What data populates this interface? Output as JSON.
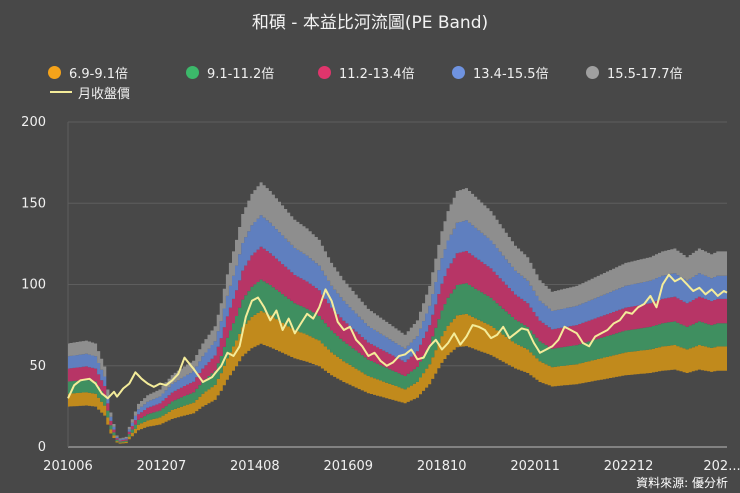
{
  "title": "和碩 - 本益比河流圖(PE Band)",
  "source": "資料來源: 優分析",
  "chart_data": {
    "type": "area",
    "title": "和碩 - 本益比河流圖(PE Band)",
    "ylim": [
      0,
      200
    ],
    "yticks": [
      "0",
      "50",
      "100",
      "150",
      "200"
    ],
    "xticks": [
      "201006",
      "201207",
      "201408",
      "201609",
      "201810",
      "202011",
      "202212",
      "202..."
    ],
    "x_start": "201006",
    "x_end": "202305",
    "legend": [
      {
        "label": "6.9-9.1倍",
        "color": "#f5a31a",
        "kind": "dot"
      },
      {
        "label": "9.1-11.2倍",
        "color": "#3cb86a",
        "kind": "dot"
      },
      {
        "label": "11.2-13.4倍",
        "color": "#e0356c",
        "kind": "dot"
      },
      {
        "label": "13.4-15.5倍",
        "color": "#6f93e0",
        "kind": "dot"
      },
      {
        "label": "15.5-17.7倍",
        "color": "#a0a0a0",
        "kind": "dot"
      },
      {
        "label": "月收盤價",
        "color": "#f4ec9a",
        "kind": "line"
      }
    ],
    "band_colors": [
      "#c18a1c",
      "#3f8f60",
      "#b73566",
      "#5f7fbf",
      "#8e8e8e"
    ],
    "band_multipliers": [
      6.9,
      9.1,
      11.2,
      13.4,
      15.5,
      17.7
    ],
    "eps_anchor_months": [
      0,
      6,
      9,
      12,
      14,
      16,
      17,
      19,
      20,
      23,
      26,
      30,
      34,
      38,
      41,
      44,
      48,
      50,
      52,
      55,
      57,
      60,
      63,
      66,
      70,
      74,
      78,
      82,
      86,
      90,
      94,
      98,
      102,
      106,
      110,
      114,
      118,
      122,
      124,
      127,
      130,
      134,
      138,
      142,
      146,
      150,
      154,
      158,
      162,
      166,
      170,
      174,
      178,
      182,
      186,
      190,
      194,
      198,
      202,
      206,
      210,
      212,
      215
    ],
    "eps_anchor_values": [
      3.6,
      3.7,
      3.6,
      2.8,
      1.2,
      0.4,
      0.3,
      0.35,
      0.7,
      1.5,
      1.8,
      2.0,
      2.5,
      2.8,
      3.0,
      3.6,
      4.2,
      5.0,
      6.0,
      7.2,
      8.1,
      8.8,
      9.2,
      8.9,
      8.4,
      7.9,
      7.6,
      7.2,
      6.4,
      5.8,
      5.3,
      4.8,
      4.5,
      4.2,
      3.9,
      4.4,
      5.6,
      7.5,
      8.2,
      8.9,
      9.0,
      8.6,
      8.2,
      7.6,
      7.0,
      6.6,
      5.8,
      5.4,
      5.5,
      5.6,
      5.8,
      6.0,
      6.2,
      6.4,
      6.5,
      6.6,
      6.8,
      6.9,
      6.6,
      6.9,
      6.7,
      6.8,
      6.8
    ],
    "price_anchor_months": [
      0,
      2,
      4,
      7,
      9,
      11,
      13,
      15,
      16,
      18,
      20,
      22,
      24,
      26,
      28,
      30,
      32,
      34,
      36,
      38,
      41,
      44,
      47,
      50,
      52,
      54,
      56,
      58,
      60,
      62,
      64,
      66,
      68,
      70,
      72,
      74,
      76,
      78,
      80,
      82,
      84,
      86,
      88,
      90,
      92,
      94,
      96,
      98,
      100,
      102,
      104,
      106,
      108,
      110,
      112,
      114,
      116,
      118,
      120,
      122,
      124,
      126,
      128,
      130,
      132,
      134,
      136,
      138,
      140,
      142,
      144,
      146,
      148,
      150,
      152,
      154,
      156,
      158,
      160,
      162,
      164,
      166,
      168,
      170,
      172,
      174,
      176,
      178,
      180,
      182,
      184,
      186,
      188,
      190,
      192,
      194,
      196,
      198,
      200,
      202,
      204,
      206,
      208,
      210,
      212,
      214,
      215
    ],
    "price_anchor_values": [
      30,
      38,
      41,
      42,
      39,
      33,
      30,
      34,
      31,
      36,
      39,
      46,
      42,
      39,
      37,
      39,
      38,
      41,
      45,
      55,
      48,
      40,
      43,
      50,
      58,
      56,
      62,
      80,
      90,
      92,
      86,
      78,
      84,
      72,
      79,
      70,
      76,
      82,
      79,
      86,
      97,
      90,
      77,
      72,
      74,
      66,
      62,
      56,
      58,
      53,
      50,
      52,
      56,
      57,
      60,
      54,
      55,
      62,
      66,
      60,
      64,
      70,
      63,
      68,
      75,
      74,
      72,
      67,
      69,
      74,
      67,
      70,
      73,
      72,
      64,
      58,
      60,
      62,
      66,
      74,
      72,
      70,
      64,
      62,
      68,
      70,
      72,
      76,
      78,
      83,
      82,
      86,
      88,
      93,
      86,
      100,
      106,
      102,
      104,
      100,
      96,
      98,
      94,
      97,
      93,
      96,
      95
    ]
  }
}
